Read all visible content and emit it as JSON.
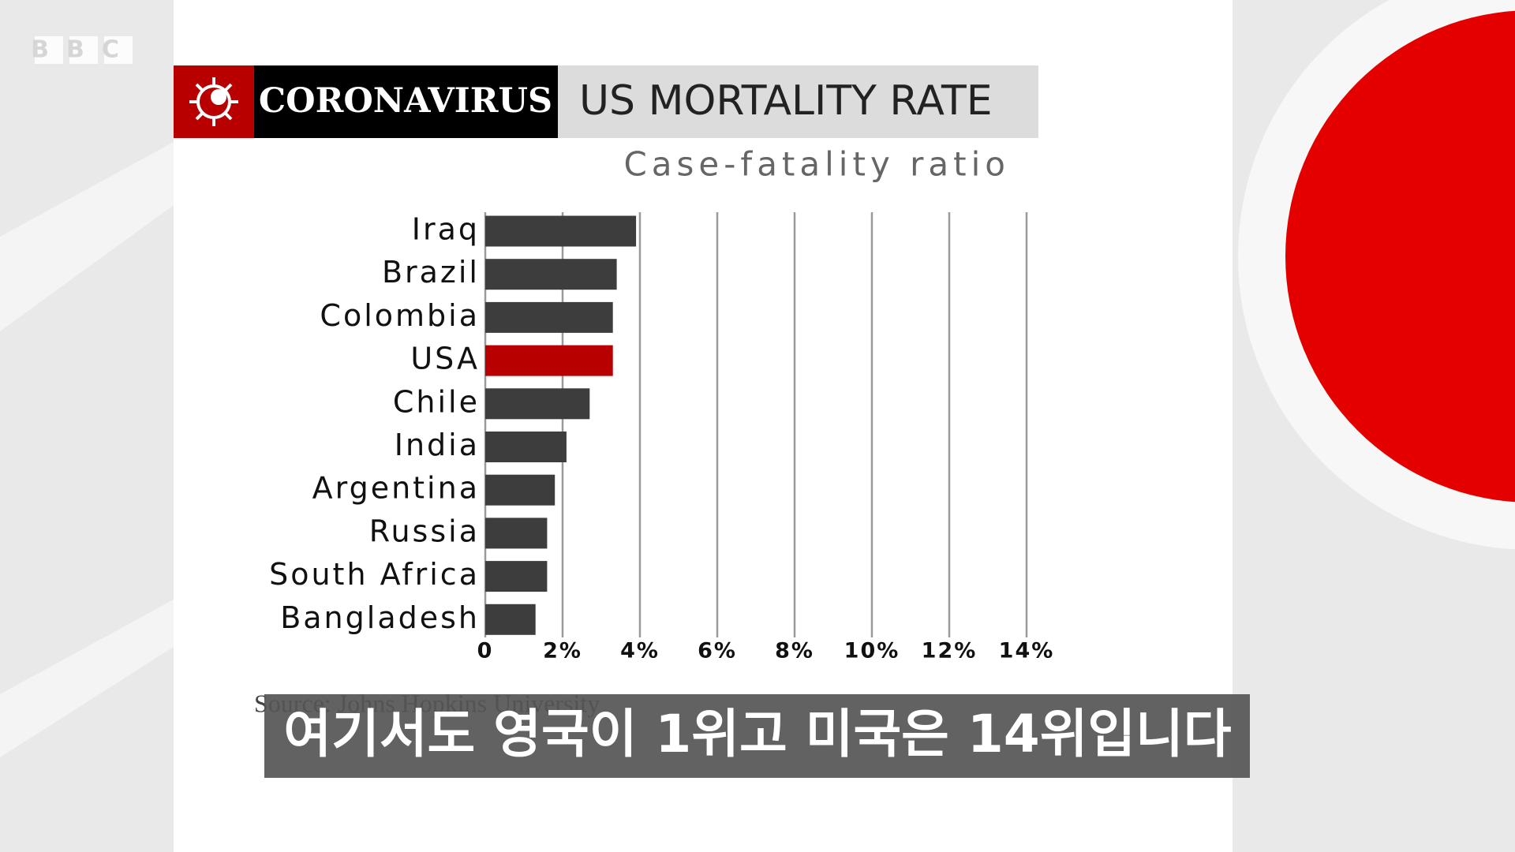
{
  "brand": "BBC",
  "badge": "CORONAVIRUS",
  "source": "Source: Johns Hopkins University",
  "caption": "여기서도 영국이 1위고 미국은 14위입니다",
  "chart_data": {
    "type": "barh",
    "title": "US MORTALITY RATE",
    "subtitle": "Case-fatality ratio",
    "categories": [
      "Iraq",
      "Brazil",
      "Colombia",
      "USA",
      "Chile",
      "India",
      "Argentina",
      "Russia",
      "South Africa",
      "Bangladesh"
    ],
    "values": [
      3.9,
      3.4,
      3.3,
      3.3,
      2.7,
      2.1,
      1.8,
      1.6,
      1.6,
      1.3
    ],
    "colors": [
      "#3d3d3d",
      "#3d3d3d",
      "#3d3d3d",
      "#b80000",
      "#3d3d3d",
      "#3d3d3d",
      "#3d3d3d",
      "#3d3d3d",
      "#3d3d3d",
      "#3d3d3d"
    ],
    "xlim": [
      0,
      14
    ],
    "xticks": [
      0,
      {
        "value": 2,
        "label": "2%"
      },
      {
        "value": 4,
        "label": "4%"
      },
      {
        "value": 6,
        "label": "6%"
      },
      {
        "value": 8,
        "label": "8%"
      },
      {
        "value": 10,
        "label": "10%"
      },
      {
        "value": 12,
        "label": "12%"
      },
      {
        "value": 14,
        "label": "14%"
      }
    ],
    "grid": true
  }
}
